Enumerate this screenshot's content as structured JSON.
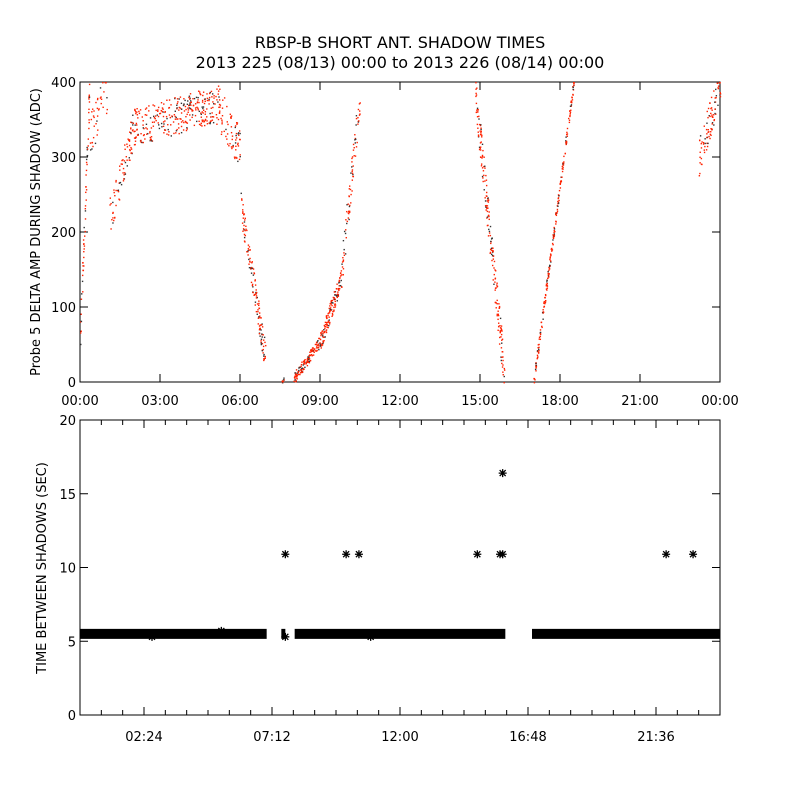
{
  "title": "RBSP-B SHORT ANT. SHADOW TIMES",
  "subtitle": "2013 225 (08/13) 00:00 to 2013 226 (08/14) 00:00",
  "colors": {
    "points_top": "#ff2200",
    "points_top_alt": "#333333",
    "points_bottom": "#000000"
  },
  "chart_data": [
    {
      "type": "scatter",
      "ylabel": "Probe 5 DELTA AMP DURING SHADOW (ADC)",
      "xlabel": "",
      "xlim": [
        0,
        24
      ],
      "ylim": [
        0,
        400
      ],
      "xtick_labels": [
        "00:00",
        "03:00",
        "06:00",
        "09:00",
        "12:00",
        "15:00",
        "18:00",
        "21:00",
        "00:00"
      ],
      "xtick_values": [
        0,
        3,
        6,
        9,
        12,
        15,
        18,
        21,
        24
      ],
      "ytick_labels": [
        "0",
        "100",
        "200",
        "300",
        "400"
      ],
      "ytick_values": [
        0,
        100,
        200,
        300,
        400
      ],
      "units_x": "hours",
      "segments": [
        {
          "t": [
            0.0,
            0.35
          ],
          "v": [
            60,
            400
          ],
          "spread": 50,
          "n": 60
        },
        {
          "t": [
            0.35,
            1.0
          ],
          "v": [
            330,
            390
          ],
          "spread": 60,
          "n": 40
        },
        {
          "t": [
            1.1,
            2.0
          ],
          "v": [
            220,
            340
          ],
          "spread": 50,
          "n": 80
        },
        {
          "t": [
            2.0,
            5.0
          ],
          "v": [
            340,
            370
          ],
          "spread": 50,
          "n": 300
        },
        {
          "t": [
            5.0,
            6.0
          ],
          "v": [
            380,
            310
          ],
          "spread": 60,
          "n": 90
        },
        {
          "t": [
            6.0,
            6.95
          ],
          "v": [
            240,
            30
          ],
          "spread": 40,
          "n": 140
        },
        {
          "t": [
            7.55,
            7.65
          ],
          "v": [
            0,
            5
          ],
          "spread": 5,
          "n": 8
        },
        {
          "t": [
            8.0,
            9.0
          ],
          "v": [
            5,
            55
          ],
          "spread": 15,
          "n": 140
        },
        {
          "t": [
            9.0,
            9.8
          ],
          "v": [
            55,
            140
          ],
          "spread": 25,
          "n": 140
        },
        {
          "t": [
            9.8,
            10.5
          ],
          "v": [
            150,
            390
          ],
          "spread": 50,
          "n": 80
        },
        {
          "t": [
            14.8,
            15.9
          ],
          "v": [
            390,
            10
          ],
          "spread": 50,
          "n": 200
        },
        {
          "t": [
            17.0,
            18.5
          ],
          "v": [
            0,
            400
          ],
          "spread": 15,
          "n": 220
        },
        {
          "t": [
            23.2,
            24.0
          ],
          "v": [
            300,
            400
          ],
          "spread": 50,
          "n": 90
        }
      ]
    },
    {
      "type": "scatter",
      "ylabel": "TIME BETWEEN SHADOWS (SEC)",
      "xlabel": "",
      "xlim": [
        0,
        24
      ],
      "ylim": [
        0,
        20
      ],
      "xtick_labels": [
        "02:24",
        "07:12",
        "12:00",
        "16:48",
        "21:36"
      ],
      "xtick_values": [
        2.4,
        7.2,
        12.0,
        16.8,
        21.6
      ],
      "ytick_labels": [
        "0",
        "5",
        "10",
        "15",
        "20"
      ],
      "ytick_values": [
        0,
        5,
        10,
        15,
        20
      ],
      "baseline_value": 5.5,
      "baseline_ranges": [
        [
          0.0,
          7.0
        ],
        [
          7.55,
          7.7
        ],
        [
          8.05,
          15.95
        ],
        [
          16.95,
          24.0
        ]
      ],
      "outliers": [
        {
          "x": 7.7,
          "y": 10.9
        },
        {
          "x": 7.7,
          "y": 5.3
        },
        {
          "x": 9.98,
          "y": 10.9
        },
        {
          "x": 10.46,
          "y": 10.9
        },
        {
          "x": 14.9,
          "y": 10.9
        },
        {
          "x": 15.75,
          "y": 10.9
        },
        {
          "x": 15.85,
          "y": 10.9
        },
        {
          "x": 15.85,
          "y": 16.4
        },
        {
          "x": 21.98,
          "y": 10.9
        },
        {
          "x": 22.99,
          "y": 10.9
        },
        {
          "x": 5.3,
          "y": 5.7
        },
        {
          "x": 10.9,
          "y": 5.3
        },
        {
          "x": 2.7,
          "y": 5.3
        }
      ]
    }
  ]
}
